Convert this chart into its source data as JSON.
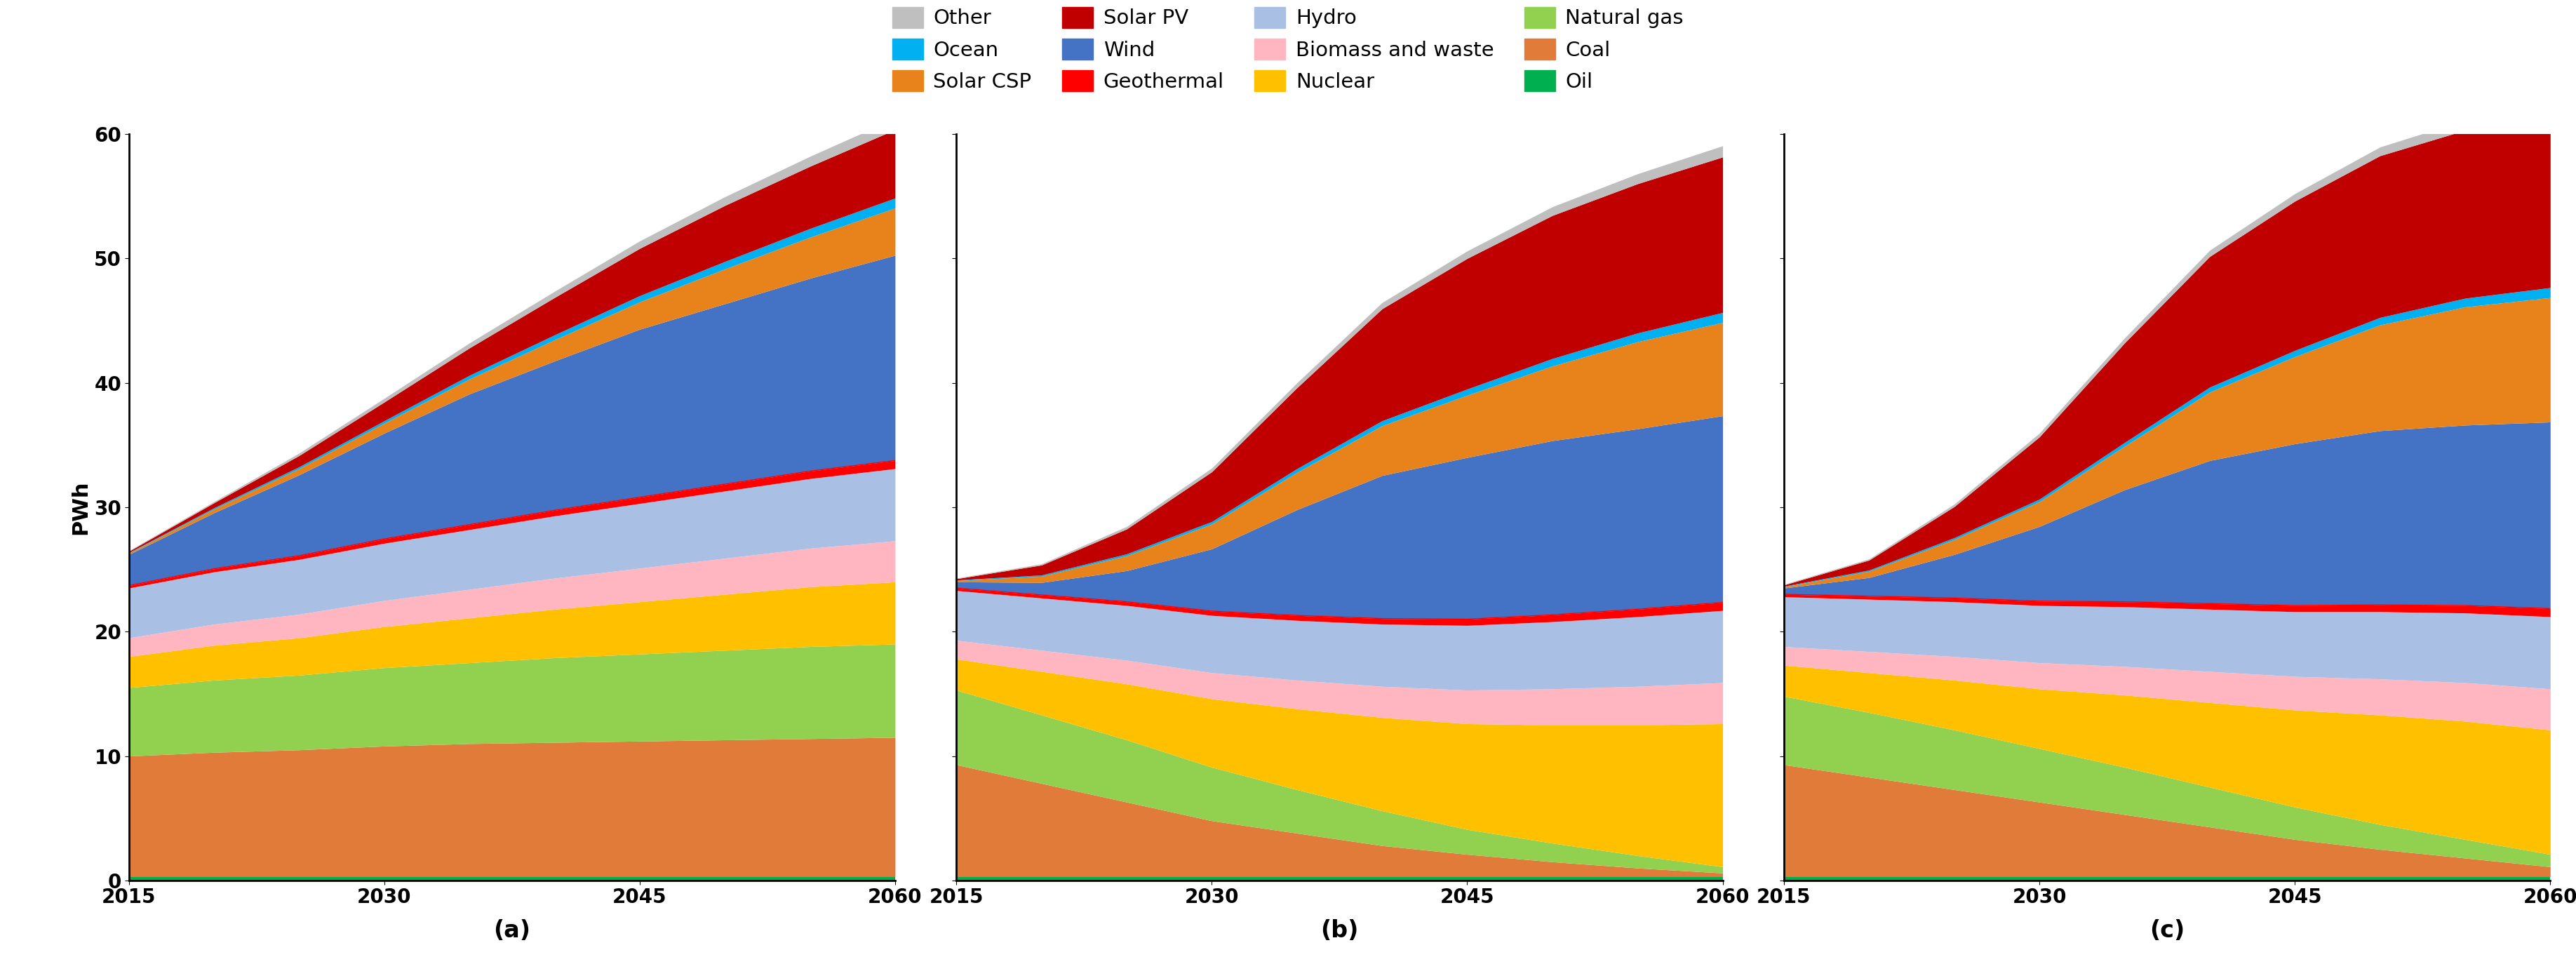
{
  "years": [
    2015,
    2020,
    2025,
    2030,
    2035,
    2040,
    2045,
    2050,
    2055,
    2060
  ],
  "layers": [
    {
      "name": "Oil",
      "color": "#00B050",
      "a": [
        0.3,
        0.3,
        0.3,
        0.3,
        0.3,
        0.3,
        0.3,
        0.3,
        0.3,
        0.3
      ],
      "b": [
        0.3,
        0.3,
        0.3,
        0.3,
        0.3,
        0.3,
        0.3,
        0.3,
        0.3,
        0.3
      ],
      "c": [
        0.3,
        0.3,
        0.3,
        0.3,
        0.3,
        0.3,
        0.3,
        0.3,
        0.3,
        0.3
      ]
    },
    {
      "name": "Coal",
      "color": "#E07B39",
      "a": [
        9.7,
        10.0,
        10.2,
        10.5,
        10.7,
        10.8,
        10.9,
        11.0,
        11.1,
        11.2
      ],
      "b": [
        9.0,
        7.5,
        6.0,
        4.5,
        3.5,
        2.5,
        1.8,
        1.2,
        0.7,
        0.3
      ],
      "c": [
        9.0,
        8.0,
        7.0,
        6.0,
        5.0,
        4.0,
        3.0,
        2.2,
        1.5,
        0.8
      ]
    },
    {
      "name": "Natural gas",
      "color": "#92D050",
      "a": [
        5.5,
        5.8,
        6.0,
        6.3,
        6.5,
        6.8,
        7.0,
        7.2,
        7.4,
        7.5
      ],
      "b": [
        6.0,
        5.5,
        5.0,
        4.3,
        3.5,
        2.8,
        2.0,
        1.5,
        1.0,
        0.5
      ],
      "c": [
        5.5,
        5.2,
        4.8,
        4.3,
        3.8,
        3.2,
        2.6,
        2.0,
        1.5,
        1.0
      ]
    },
    {
      "name": "Nuclear",
      "color": "#FFC000",
      "a": [
        2.5,
        2.8,
        3.0,
        3.3,
        3.6,
        3.9,
        4.2,
        4.5,
        4.8,
        5.0
      ],
      "b": [
        2.5,
        3.5,
        4.5,
        5.5,
        6.5,
        7.5,
        8.5,
        9.5,
        10.5,
        11.5
      ],
      "c": [
        2.5,
        3.2,
        4.0,
        4.8,
        5.8,
        6.8,
        7.8,
        8.8,
        9.5,
        10.0
      ]
    },
    {
      "name": "Biomass and waste",
      "color": "#FFB6C1",
      "a": [
        1.5,
        1.7,
        1.9,
        2.1,
        2.3,
        2.5,
        2.7,
        2.9,
        3.1,
        3.3
      ],
      "b": [
        1.5,
        1.7,
        1.9,
        2.1,
        2.3,
        2.5,
        2.7,
        2.9,
        3.1,
        3.3
      ],
      "c": [
        1.5,
        1.7,
        1.9,
        2.1,
        2.3,
        2.5,
        2.7,
        2.9,
        3.1,
        3.3
      ]
    },
    {
      "name": "Hydro",
      "color": "#A9BFE3",
      "a": [
        4.0,
        4.2,
        4.4,
        4.6,
        4.8,
        5.0,
        5.2,
        5.4,
        5.6,
        5.8
      ],
      "b": [
        4.0,
        4.2,
        4.4,
        4.6,
        4.8,
        5.0,
        5.2,
        5.4,
        5.6,
        5.8
      ],
      "c": [
        4.0,
        4.2,
        4.4,
        4.6,
        4.8,
        5.0,
        5.2,
        5.4,
        5.6,
        5.8
      ]
    },
    {
      "name": "Geothermal",
      "color": "#FF0000",
      "a": [
        0.2,
        0.25,
        0.3,
        0.35,
        0.4,
        0.45,
        0.5,
        0.55,
        0.6,
        0.65
      ],
      "b": [
        0.2,
        0.25,
        0.3,
        0.35,
        0.4,
        0.45,
        0.5,
        0.55,
        0.6,
        0.65
      ],
      "c": [
        0.2,
        0.25,
        0.3,
        0.35,
        0.4,
        0.45,
        0.5,
        0.55,
        0.6,
        0.65
      ]
    },
    {
      "name": "Wind",
      "color": "#4472C4",
      "a": [
        2.5,
        4.5,
        6.5,
        8.5,
        10.5,
        12.0,
        13.5,
        14.5,
        15.5,
        16.5
      ],
      "b": [
        0.5,
        1.0,
        2.5,
        5.0,
        8.5,
        11.5,
        13.0,
        14.0,
        14.5,
        15.0
      ],
      "c": [
        0.5,
        1.5,
        3.5,
        6.0,
        9.0,
        11.5,
        13.0,
        14.0,
        14.5,
        15.0
      ]
    },
    {
      "name": "Solar CSP",
      "color": "#E8821A",
      "a": [
        0.1,
        0.3,
        0.5,
        0.8,
        1.2,
        1.7,
        2.2,
        2.8,
        3.3,
        3.8
      ],
      "b": [
        0.1,
        0.5,
        1.2,
        2.0,
        3.0,
        4.0,
        5.0,
        6.0,
        7.0,
        7.5
      ],
      "c": [
        0.1,
        0.5,
        1.2,
        2.0,
        3.5,
        5.5,
        7.0,
        8.5,
        9.5,
        10.0
      ]
    },
    {
      "name": "Ocean",
      "color": "#00B0F0",
      "a": [
        0.05,
        0.1,
        0.15,
        0.2,
        0.3,
        0.4,
        0.5,
        0.6,
        0.7,
        0.8
      ],
      "b": [
        0.05,
        0.1,
        0.15,
        0.2,
        0.3,
        0.4,
        0.5,
        0.6,
        0.7,
        0.8
      ],
      "c": [
        0.05,
        0.1,
        0.15,
        0.2,
        0.3,
        0.4,
        0.5,
        0.6,
        0.7,
        0.8
      ]
    },
    {
      "name": "Solar PV",
      "color": "#C00000",
      "a": [
        0.1,
        0.4,
        0.9,
        1.5,
        2.2,
        3.0,
        3.8,
        4.5,
        5.0,
        5.5
      ],
      "b": [
        0.1,
        0.8,
        2.0,
        4.0,
        6.5,
        9.0,
        10.5,
        11.5,
        12.0,
        12.5
      ],
      "c": [
        0.1,
        0.8,
        2.5,
        5.0,
        8.0,
        10.5,
        12.0,
        13.0,
        13.5,
        14.0
      ]
    },
    {
      "name": "Other",
      "color": "#BFBFBF",
      "a": [
        0.05,
        0.1,
        0.2,
        0.3,
        0.4,
        0.5,
        0.6,
        0.7,
        0.8,
        0.9
      ],
      "b": [
        0.05,
        0.1,
        0.2,
        0.3,
        0.4,
        0.5,
        0.6,
        0.7,
        0.8,
        0.9
      ],
      "c": [
        0.05,
        0.1,
        0.2,
        0.3,
        0.4,
        0.5,
        0.6,
        0.7,
        0.8,
        0.9
      ]
    }
  ],
  "legend_order": [
    "Other",
    "Ocean",
    "Solar CSP",
    "Solar PV",
    "Wind",
    "Geothermal",
    "Hydro",
    "Biomass and waste",
    "Nuclear",
    "Natural gas",
    "Coal",
    "Oil"
  ],
  "subplot_labels": [
    "(a)",
    "(b)",
    "(c)"
  ],
  "ylabel": "PWh",
  "ylim": [
    0,
    60
  ],
  "yticks": [
    0,
    10,
    20,
    30,
    40,
    50,
    60
  ],
  "xticks": [
    2015,
    2030,
    2045,
    2060
  ],
  "background_color": "#FFFFFF"
}
